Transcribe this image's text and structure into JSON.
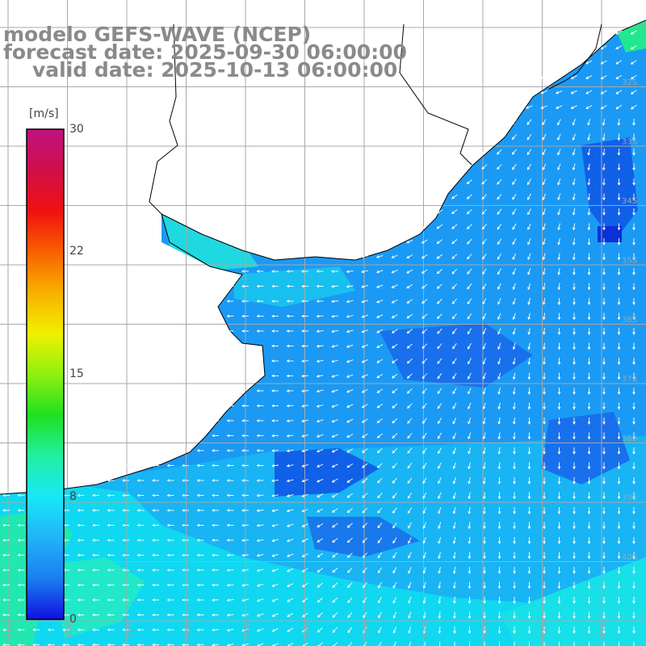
{
  "title": {
    "line1": "modelo GEFS-WAVE (NCEP)",
    "line2": "forecast date: 2025-09-30 06:00:00",
    "line3": "valid date: 2025-10-13 06:00:00"
  },
  "colorbar": {
    "unit": "[m/s]",
    "ticks": [
      {
        "label": "30",
        "value": 30
      },
      {
        "label": "22",
        "value": 22
      },
      {
        "label": "15",
        "value": 15
      },
      {
        "label": "8",
        "value": 8
      },
      {
        "label": "0",
        "value": 0
      }
    ],
    "stops": [
      "#1010e0",
      "#1a7ef0",
      "#20b4f8",
      "#18e8f8",
      "#20f0a0",
      "#20e020",
      "#90f010",
      "#f0f000",
      "#f8b000",
      "#f86000",
      "#f01010",
      "#d0104a",
      "#c01080"
    ]
  },
  "map": {
    "land_color": "#ffffff",
    "grid_color": "#a8a8a8",
    "coast_color": "#000000",
    "arrow_color": "#ffffff",
    "lat_labels": [
      "32S",
      "33S",
      "34S",
      "35S",
      "36S",
      "37S",
      "38S",
      "39S",
      "40S",
      "41S"
    ],
    "lon_labels": [
      "61W",
      "60W",
      "59W",
      "58W",
      "57W",
      "56W",
      "55W",
      "54W",
      "53W",
      "52W",
      "51W"
    ]
  }
}
